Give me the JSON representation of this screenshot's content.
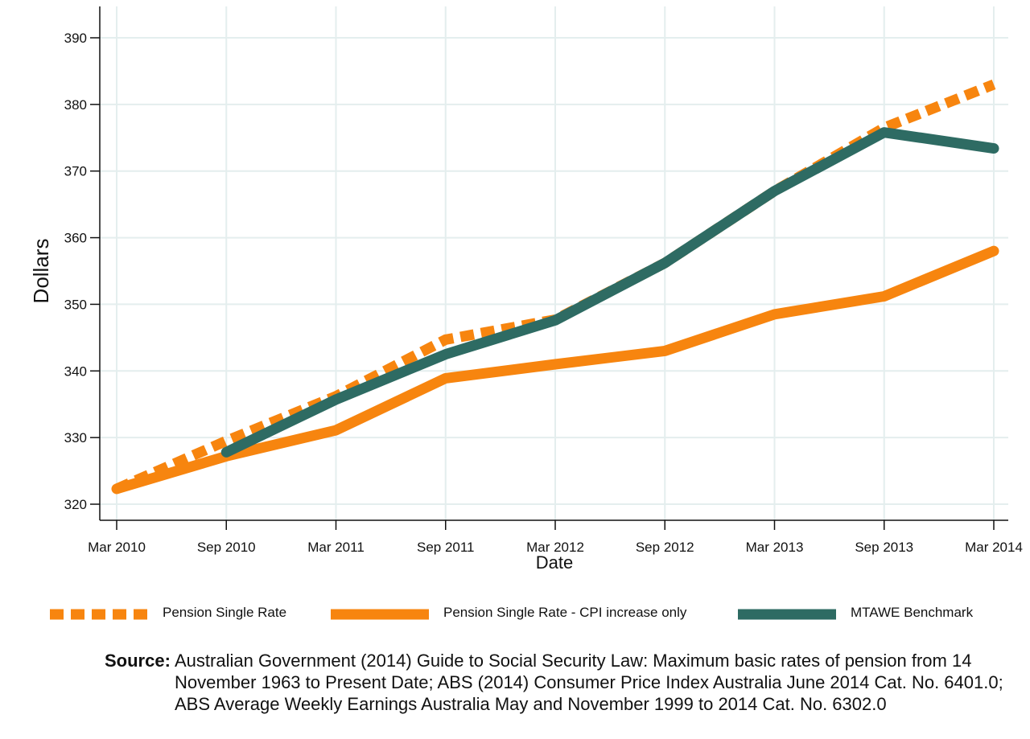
{
  "chart_data": {
    "type": "line",
    "title": "",
    "xlabel": "Date",
    "ylabel": "Dollars",
    "ylim": [
      317,
      392
    ],
    "yticks": [
      320,
      330,
      340,
      350,
      360,
      370,
      380,
      390
    ],
    "categories": [
      "Mar 2010",
      "Sep 2010",
      "Mar 2011",
      "Sep 2011",
      "Mar 2012",
      "Sep 2012",
      "Mar 2013",
      "Sep 2013",
      "Mar 2014"
    ],
    "grid": true,
    "legend_position": "bottom",
    "series": [
      {
        "name": "Pension Single Rate",
        "style": "dashed",
        "color": "#f7850f",
        "values": [
          322.3,
          329.5,
          336.2,
          344.7,
          347.7,
          356.2,
          367.0,
          376.5,
          383.0
        ]
      },
      {
        "name": "Pension Single Rate - CPI increase only",
        "style": "solid",
        "color": "#f7850f",
        "values": [
          322.3,
          327.2,
          331.1,
          338.9,
          341.0,
          343.0,
          348.5,
          351.2,
          358.0
        ]
      },
      {
        "name": "MTAWE Benchmark",
        "style": "solid",
        "color": "#2e6b63",
        "values": [
          null,
          327.8,
          335.7,
          342.5,
          347.6,
          356.2,
          367.0,
          375.8,
          373.4
        ]
      }
    ]
  },
  "source": {
    "label": "Source:",
    "text": "Australian Government (2014) Guide to Social Security Law: Maximum basic rates of pension from 14 November 1963 to Present Date; ABS (2014) Consumer Price Index Australia June 2014 Cat. No. 6401.0; ABS Average Weekly Earnings Australia May and November 1999 to 2014 Cat. No. 6302.0"
  }
}
